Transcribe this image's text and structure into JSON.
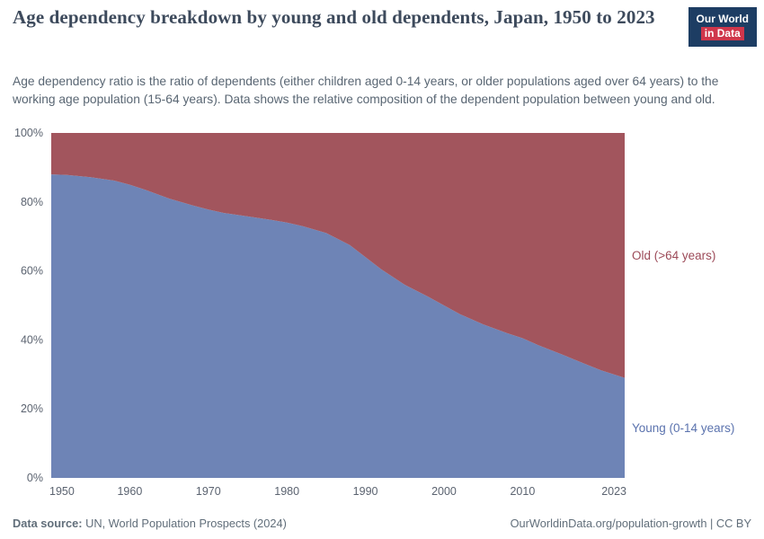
{
  "header": {
    "title": "Age dependency breakdown by young and old dependents, Japan, 1950 to 2023",
    "subtitle": "Age dependency ratio is the ratio of dependents (either children aged 0-14 years, or older populations aged over 64 years) to the working age population (15-64 years). Data shows the relative composition of the dependent population between young and old.",
    "logo": {
      "line1": "Our World",
      "line2": "in Data",
      "bg_color": "#1d3d63",
      "accent_color": "#cf364b"
    }
  },
  "chart_data": {
    "type": "area",
    "stacked": true,
    "unit": "%",
    "title": "Age dependency breakdown by young and old dependents, Japan, 1950 to 2023",
    "ylim": [
      0,
      100
    ],
    "grid": false,
    "legend_position": "right-of-plot",
    "x": [
      1950,
      1952,
      1955,
      1958,
      1960,
      1962,
      1965,
      1968,
      1970,
      1972,
      1975,
      1978,
      1980,
      1982,
      1985,
      1988,
      1990,
      1992,
      1995,
      1998,
      2000,
      2002,
      2005,
      2008,
      2010,
      2012,
      2015,
      2018,
      2020,
      2023
    ],
    "series": [
      {
        "name": "Young (0-14 years)",
        "color": "#6e84b6",
        "label_color": "#5b73ae",
        "values": [
          88,
          87.8,
          87.2,
          86.2,
          85,
          83.5,
          81,
          79,
          77.8,
          76.8,
          75.8,
          74.8,
          74,
          73,
          71,
          67.5,
          64,
          60.5,
          56,
          52.5,
          50,
          47.5,
          44.5,
          42,
          40.5,
          38.5,
          35.8,
          33,
          31.2,
          29
        ]
      },
      {
        "name": "Old (>64 years)",
        "color": "#a2555d",
        "label_color": "#9c4a58",
        "values": [
          12,
          12.2,
          12.8,
          13.8,
          15,
          16.5,
          19,
          21,
          22.2,
          23.2,
          24.2,
          25.2,
          26,
          27,
          29,
          32.5,
          36,
          39.5,
          44,
          47.5,
          50,
          52.5,
          55.5,
          58,
          59.5,
          61.5,
          64.2,
          67,
          68.8,
          71
        ]
      }
    ],
    "yticks": [
      {
        "value": 0,
        "label": "0%"
      },
      {
        "value": 20,
        "label": "20%"
      },
      {
        "value": 40,
        "label": "40%"
      },
      {
        "value": 60,
        "label": "60%"
      },
      {
        "value": 80,
        "label": "80%"
      },
      {
        "value": 100,
        "label": "100%"
      }
    ],
    "xticks": [
      {
        "value": 1950,
        "label": "1950"
      },
      {
        "value": 1960,
        "label": "1960"
      },
      {
        "value": 1970,
        "label": "1970"
      },
      {
        "value": 1980,
        "label": "1980"
      },
      {
        "value": 1990,
        "label": "1990"
      },
      {
        "value": 2000,
        "label": "2000"
      },
      {
        "value": 2010,
        "label": "2010"
      },
      {
        "value": 2023,
        "label": "2023"
      }
    ]
  },
  "footer": {
    "source_label": "Data source:",
    "source_text": " UN, World Population Prospects (2024)",
    "credit": "OurWorldinData.org/population-growth | CC BY"
  }
}
